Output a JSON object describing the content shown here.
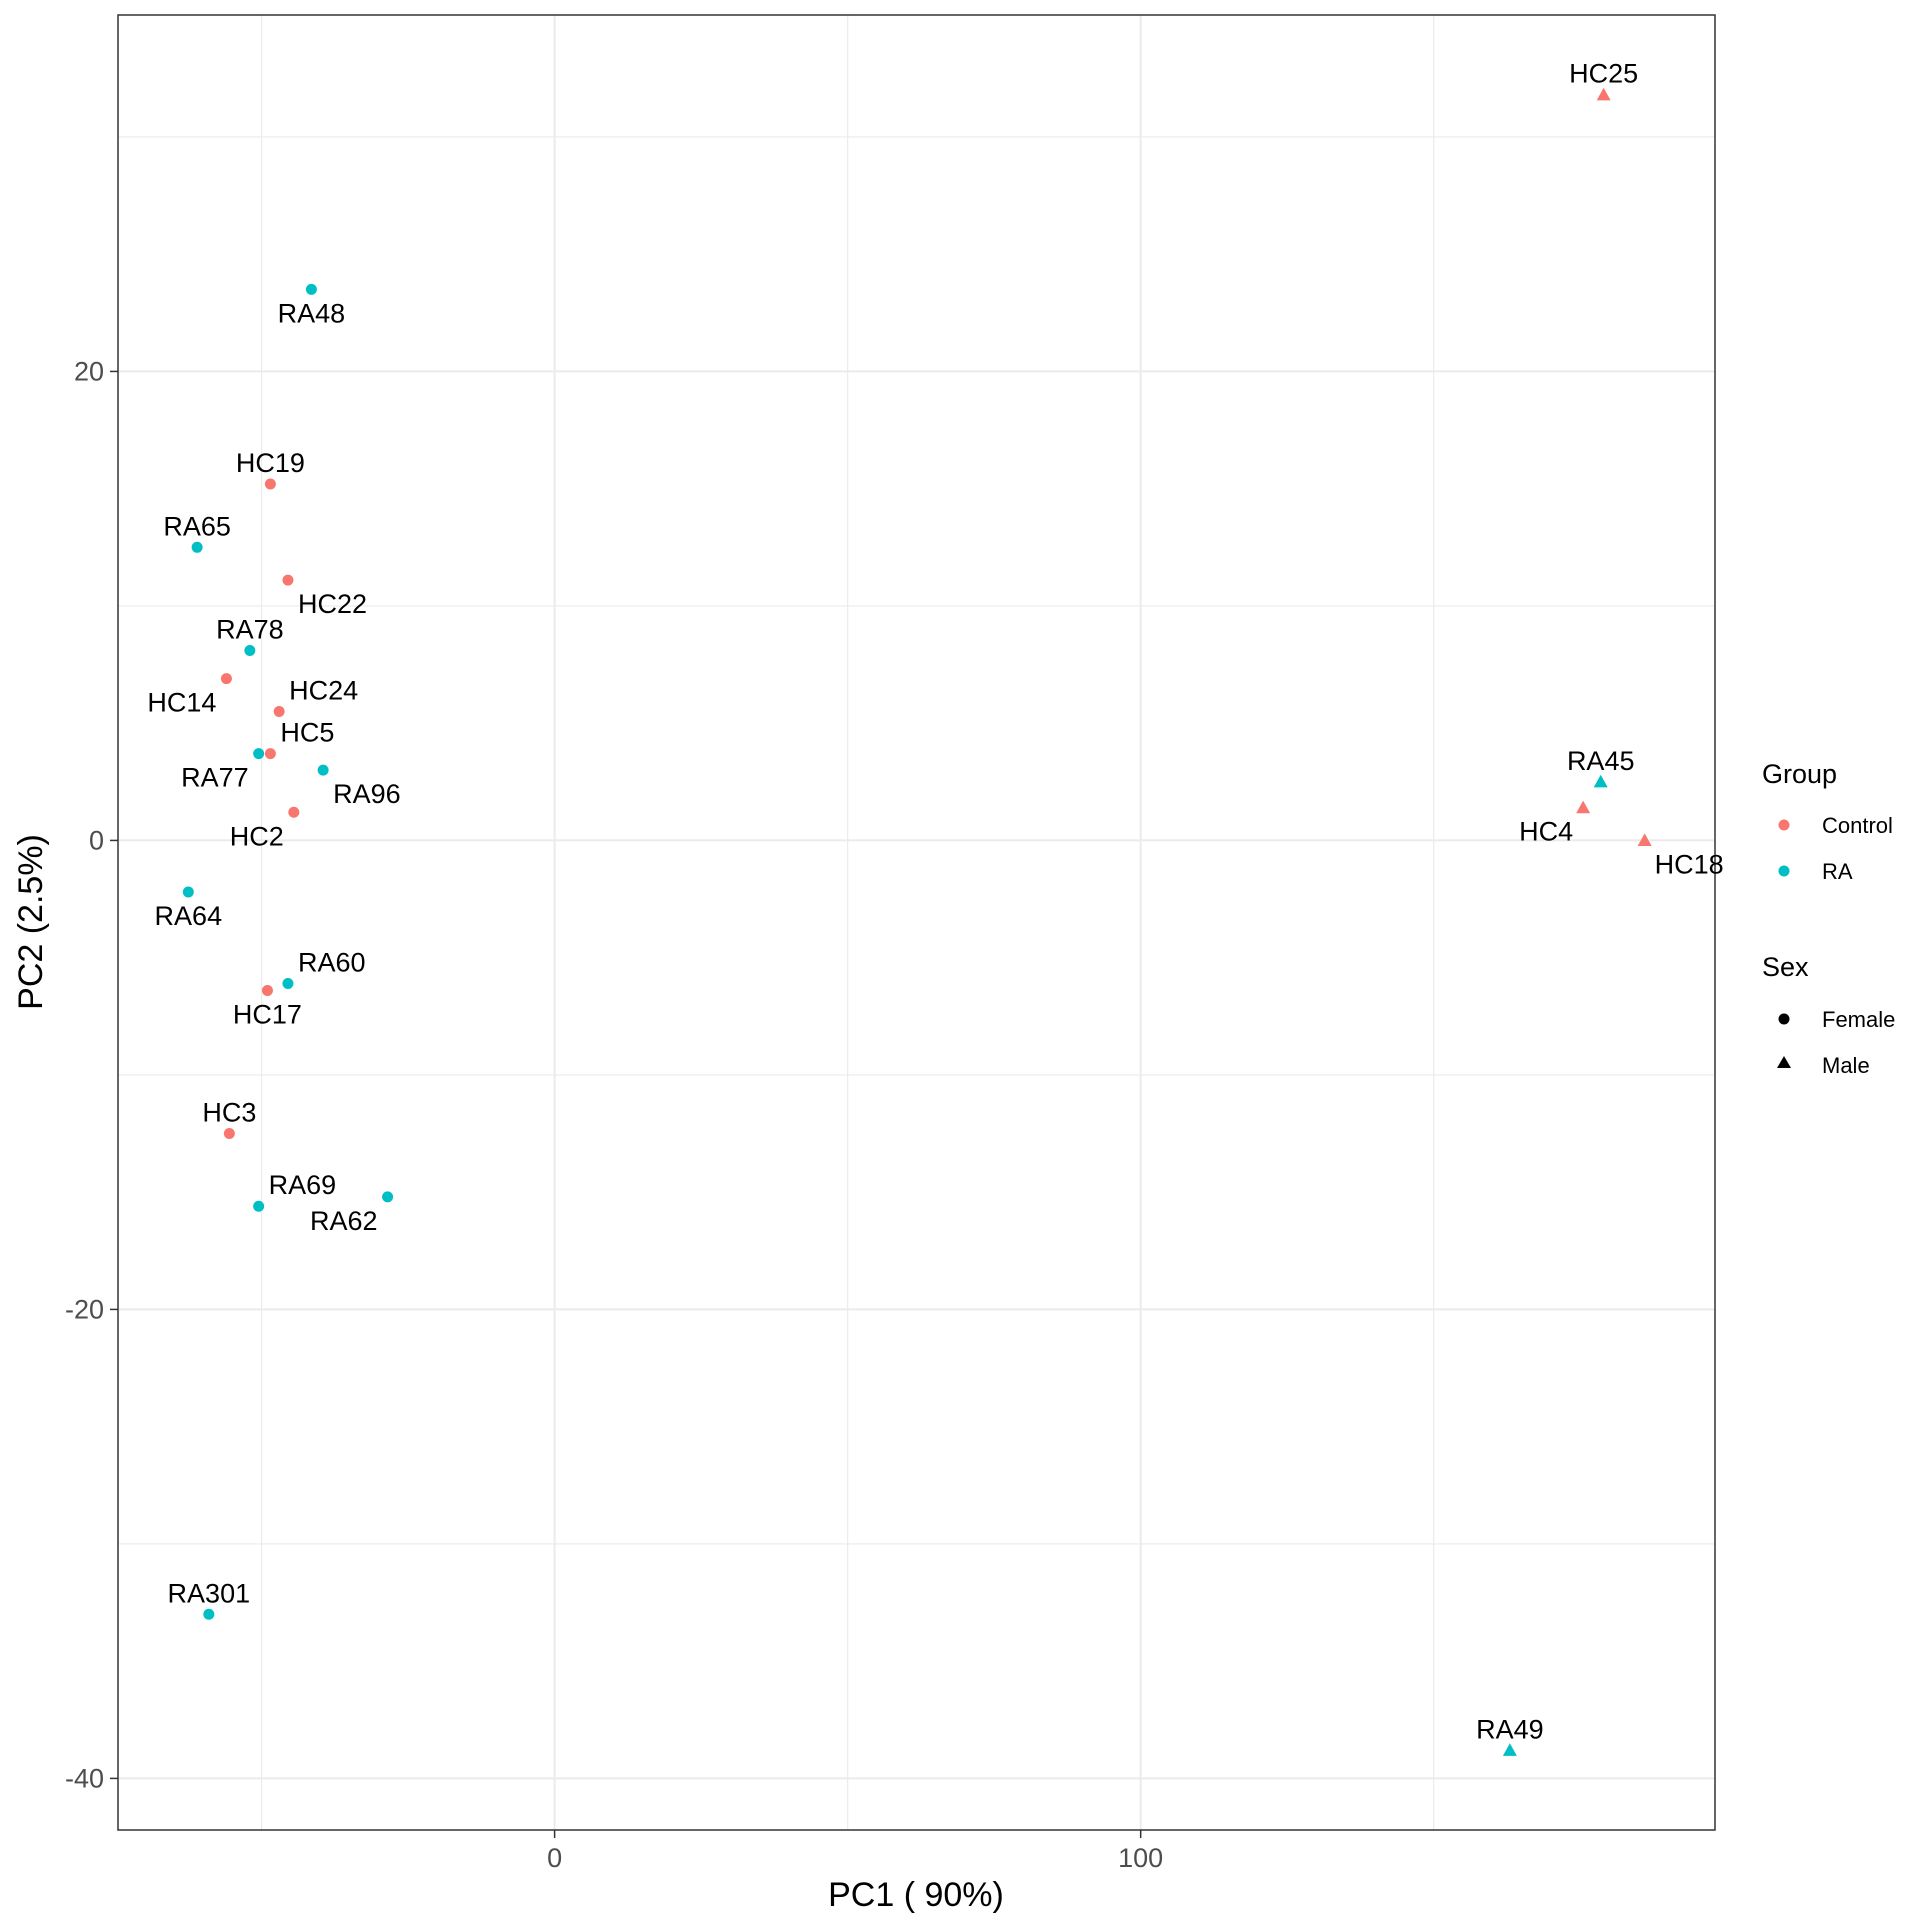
{
  "chart_data": {
    "type": "scatter",
    "xlabel": "PC1 ( 90%)",
    "ylabel": "PC2 (2.5%)",
    "xlim": [
      -74.5,
      198
    ],
    "ylim": [
      -42.2,
      35.2
    ],
    "x_ticks": [
      0,
      100
    ],
    "x_tick_labels": [
      "0",
      "100"
    ],
    "y_ticks": [
      -40,
      -20,
      0,
      20
    ],
    "y_tick_labels": [
      "-40",
      "-20",
      "0",
      "20"
    ],
    "grid": true,
    "colors": {
      "Control": "#F8766D",
      "RA": "#00BFC4"
    },
    "legend": {
      "placement": "right",
      "group_title": "Group",
      "group_items": [
        "Control",
        "RA"
      ],
      "sex_title": "Sex",
      "sex_items": [
        "Female",
        "Male"
      ]
    },
    "points": [
      {
        "label": "HC25",
        "x": 179,
        "y": 31.8,
        "group": "Control",
        "sex": "Male",
        "label_pos": "above"
      },
      {
        "label": "RA48",
        "x": -41.5,
        "y": 23.5,
        "group": "RA",
        "sex": "Female",
        "label_pos": "below"
      },
      {
        "label": "HC19",
        "x": -48.5,
        "y": 15.2,
        "group": "Control",
        "sex": "Female",
        "label_pos": "above"
      },
      {
        "label": "RA65",
        "x": -61,
        "y": 12.5,
        "group": "RA",
        "sex": "Female",
        "label_pos": "above"
      },
      {
        "label": "HC22",
        "x": -45.5,
        "y": 11.1,
        "group": "Control",
        "sex": "Female",
        "label_pos": "belowright"
      },
      {
        "label": "RA78",
        "x": -52,
        "y": 8.1,
        "group": "RA",
        "sex": "Female",
        "label_pos": "above"
      },
      {
        "label": "HC14",
        "x": -56,
        "y": 6.9,
        "group": "Control",
        "sex": "Female",
        "label_pos": "belowleft"
      },
      {
        "label": "HC24",
        "x": -47,
        "y": 5.5,
        "group": "Control",
        "sex": "Female",
        "label_pos": "aboveright"
      },
      {
        "label": "RA77",
        "x": -50.5,
        "y": 3.7,
        "group": "RA",
        "sex": "Female",
        "label_pos": "belowleft"
      },
      {
        "label": "HC5",
        "x": -48.5,
        "y": 3.7,
        "group": "Control",
        "sex": "Female",
        "label_pos": "aboveright"
      },
      {
        "label": "RA96",
        "x": -39.5,
        "y": 3.0,
        "group": "RA",
        "sex": "Female",
        "label_pos": "belowright"
      },
      {
        "label": "HC2",
        "x": -44.5,
        "y": 1.2,
        "group": "Control",
        "sex": "Female",
        "label_pos": "belowleft"
      },
      {
        "label": "RA64",
        "x": -62.5,
        "y": -2.2,
        "group": "RA",
        "sex": "Female",
        "label_pos": "below"
      },
      {
        "label": "RA60",
        "x": -45.5,
        "y": -6.1,
        "group": "RA",
        "sex": "Female",
        "label_pos": "aboveright"
      },
      {
        "label": "HC17",
        "x": -49,
        "y": -6.4,
        "group": "Control",
        "sex": "Female",
        "label_pos": "below"
      },
      {
        "label": "HC3",
        "x": -55.5,
        "y": -12.5,
        "group": "Control",
        "sex": "Female",
        "label_pos": "above"
      },
      {
        "label": "RA69",
        "x": -50.5,
        "y": -15.6,
        "group": "RA",
        "sex": "Female",
        "label_pos": "aboveright"
      },
      {
        "label": "RA62",
        "x": -28.5,
        "y": -15.2,
        "group": "RA",
        "sex": "Female",
        "label_pos": "belowleft"
      },
      {
        "label": "RA301",
        "x": -59,
        "y": -33,
        "group": "RA",
        "sex": "Female",
        "label_pos": "above"
      },
      {
        "label": "RA45",
        "x": 178.5,
        "y": 2.5,
        "group": "RA",
        "sex": "Male",
        "label_pos": "above"
      },
      {
        "label": "HC4",
        "x": 175.5,
        "y": 1.4,
        "group": "Control",
        "sex": "Male",
        "label_pos": "belowleft"
      },
      {
        "label": "HC18",
        "x": 186,
        "y": 0,
        "group": "Control",
        "sex": "Male",
        "label_pos": "belowright"
      },
      {
        "label": "RA49",
        "x": 163,
        "y": -38.8,
        "group": "RA",
        "sex": "Male",
        "label_pos": "above"
      }
    ]
  }
}
